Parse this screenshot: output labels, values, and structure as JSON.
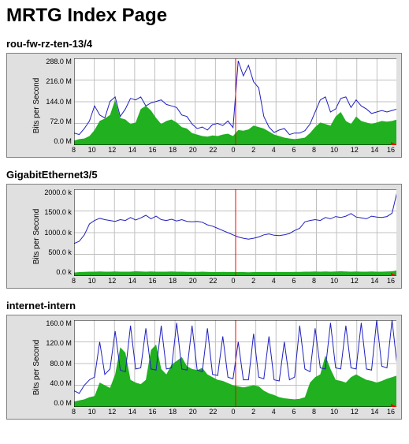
{
  "page_title": "MRTG Index Page",
  "ylabel": "Bits per Second",
  "frame_bg": "#e0e0e0",
  "frame_border": "#808080",
  "plot_bg": "#ffffff",
  "line_color": "#2020c0",
  "area_color": "#20b020",
  "grid_color": "#c0c0c0",
  "now_line_color": "#ff0000",
  "arrow_color": "#ff0000",
  "axis_color": "#000000",
  "x_labels": [
    "8",
    "10",
    "12",
    "14",
    "16",
    "18",
    "20",
    "22",
    "0",
    "2",
    "4",
    "6",
    "8",
    "10",
    "12",
    "14",
    "16"
  ],
  "now_index": 8,
  "graphs": [
    {
      "title": "rou-fw-rz-ten-13/4",
      "y_ticks": [
        "288.0 M",
        "216.0 M",
        "144.0 M",
        "72.0 M",
        "0.0 M"
      ],
      "y_max": 288,
      "line": [
        40,
        35,
        55,
        80,
        130,
        100,
        90,
        145,
        160,
        95,
        120,
        155,
        150,
        160,
        130,
        140,
        145,
        150,
        135,
        130,
        125,
        100,
        95,
        70,
        55,
        60,
        50,
        68,
        72,
        65,
        80,
        58,
        280,
        230,
        265,
        210,
        190,
        95,
        60,
        42,
        50,
        55,
        35,
        40,
        40,
        48,
        70,
        110,
        150,
        160,
        110,
        120,
        155,
        160,
        125,
        150,
        130,
        120,
        105,
        110,
        115,
        110,
        115,
        120
      ],
      "area": [
        15,
        20,
        22,
        30,
        50,
        80,
        88,
        100,
        150,
        90,
        85,
        70,
        75,
        120,
        130,
        115,
        90,
        70,
        80,
        85,
        75,
        60,
        55,
        40,
        35,
        30,
        28,
        32,
        30,
        35,
        38,
        30,
        50,
        48,
        52,
        65,
        60,
        55,
        45,
        35,
        30,
        25,
        22,
        20,
        22,
        25,
        40,
        60,
        75,
        70,
        65,
        95,
        110,
        80,
        70,
        95,
        80,
        75,
        70,
        75,
        80,
        78,
        80,
        85
      ]
    },
    {
      "title": "GigabitEthernet3/5",
      "y_ticks": [
        "2000.0 k",
        "1500.0 k",
        "1000.0 k",
        "500.0 k",
        "0.0 k"
      ],
      "y_max": 2000,
      "line": [
        750,
        800,
        950,
        1200,
        1280,
        1330,
        1300,
        1280,
        1260,
        1300,
        1280,
        1350,
        1290,
        1340,
        1400,
        1320,
        1380,
        1300,
        1280,
        1310,
        1270,
        1300,
        1260,
        1250,
        1260,
        1240,
        1180,
        1150,
        1100,
        1050,
        1000,
        950,
        900,
        870,
        850,
        870,
        900,
        950,
        970,
        940,
        930,
        950,
        980,
        1050,
        1100,
        1250,
        1280,
        1300,
        1280,
        1350,
        1320,
        1370,
        1350,
        1380,
        1440,
        1360,
        1340,
        1320,
        1380,
        1360,
        1350,
        1370,
        1450,
        1950
      ],
      "area": [
        80,
        90,
        95,
        100,
        100,
        105,
        100,
        100,
        105,
        100,
        100,
        100,
        110,
        105,
        100,
        105,
        100,
        100,
        100,
        105,
        100,
        100,
        95,
        95,
        95,
        100,
        95,
        90,
        90,
        95,
        90,
        90,
        90,
        90,
        85,
        90,
        90,
        90,
        90,
        90,
        90,
        90,
        90,
        95,
        95,
        100,
        100,
        105,
        100,
        105,
        100,
        105,
        110,
        105,
        100,
        105,
        100,
        100,
        105,
        100,
        100,
        105,
        110,
        130
      ]
    },
    {
      "title": "internet-intern",
      "y_ticks": [
        "160.0 M",
        "120.0 M",
        "80.0 M",
        "40.0 M",
        "0.0 M"
      ],
      "y_max": 160,
      "line": [
        30,
        25,
        40,
        50,
        55,
        120,
        60,
        70,
        140,
        68,
        65,
        150,
        70,
        72,
        145,
        70,
        68,
        150,
        70,
        72,
        155,
        70,
        68,
        150,
        68,
        65,
        145,
        60,
        58,
        130,
        55,
        52,
        120,
        50,
        50,
        135,
        55,
        52,
        130,
        50,
        48,
        120,
        50,
        55,
        150,
        70,
        65,
        145,
        72,
        70,
        155,
        72,
        70,
        150,
        72,
        70,
        155,
        70,
        68,
        160,
        75,
        72,
        160,
        75
      ],
      "area": [
        10,
        12,
        14,
        18,
        20,
        45,
        40,
        35,
        60,
        110,
        100,
        50,
        45,
        42,
        50,
        105,
        115,
        70,
        60,
        78,
        85,
        92,
        75,
        70,
        68,
        72,
        60,
        55,
        50,
        48,
        44,
        40,
        38,
        36,
        38,
        40,
        38,
        30,
        25,
        22,
        18,
        16,
        15,
        14,
        15,
        18,
        45,
        55,
        60,
        95,
        70,
        50,
        48,
        45,
        55,
        60,
        55,
        50,
        48,
        45,
        48,
        52,
        55,
        58
      ]
    }
  ]
}
